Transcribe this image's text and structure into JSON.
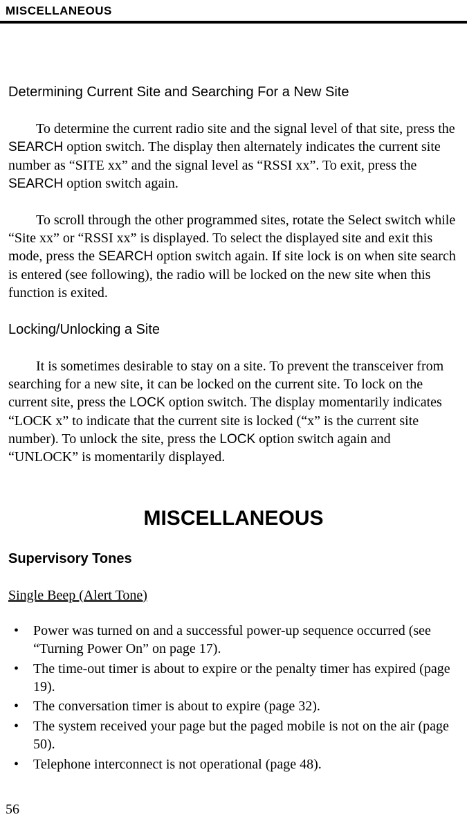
{
  "header": {
    "running_title": "MISCELLANEOUS"
  },
  "sections": {
    "determining": {
      "heading": "Determining Current Site and Searching For a New Site",
      "para1_a": "To determine the current radio site and the signal level of that site, press the ",
      "para1_search1": "SEARCH",
      "para1_b": " option switch. The display then alternately indicates the current site number as “SITE xx” and the signal level as “RSSI xx”. To exit, press the ",
      "para1_search2": "SEARCH",
      "para1_c": " option switch again.",
      "para2_a": "To scroll through the other programmed sites, rotate the Select switch while “Site xx” or “RSSI xx” is displayed. To select the displayed site and exit this mode, press the ",
      "para2_search": "SEARCH",
      "para2_b": " option switch again. If site lock is on when site search is entered (see following), the radio will be locked on the new site when this function is exited."
    },
    "locking": {
      "heading": "Locking/Unlocking a Site",
      "para1_a": "It is sometimes desirable to stay on a site. To prevent the transceiver from searching for a new site, it can be locked on the current site. To lock on the current site, press the ",
      "para1_lock1": "LOCK",
      "para1_b": " option switch. The display momen­tarily indicates “LOCK x” to indicate that the current site is locked (“x” is the current site number). To unlock the site, press the ",
      "para1_lock2": "LOCK",
      "para1_c": " option switch again and “UNLOCK” is momentarily displayed."
    },
    "misc": {
      "title": "MISCELLANEOUS",
      "supervisory": "Supervisory Tones",
      "single_beep": "Single Beep (Alert Tone)",
      "bullets": [
        "Power was turned on and a successful power-up sequence occurred (see “Turning Power On” on page 17).",
        "The time-out timer is about to expire or the penalty timer has expired (page 19).",
        "The conversation timer is about to expire (page 32).",
        "The system received your page but the paged mobile is not on the air (page 50).",
        "Telephone interconnect is not operational (page 48)."
      ]
    }
  },
  "page_number": "56"
}
